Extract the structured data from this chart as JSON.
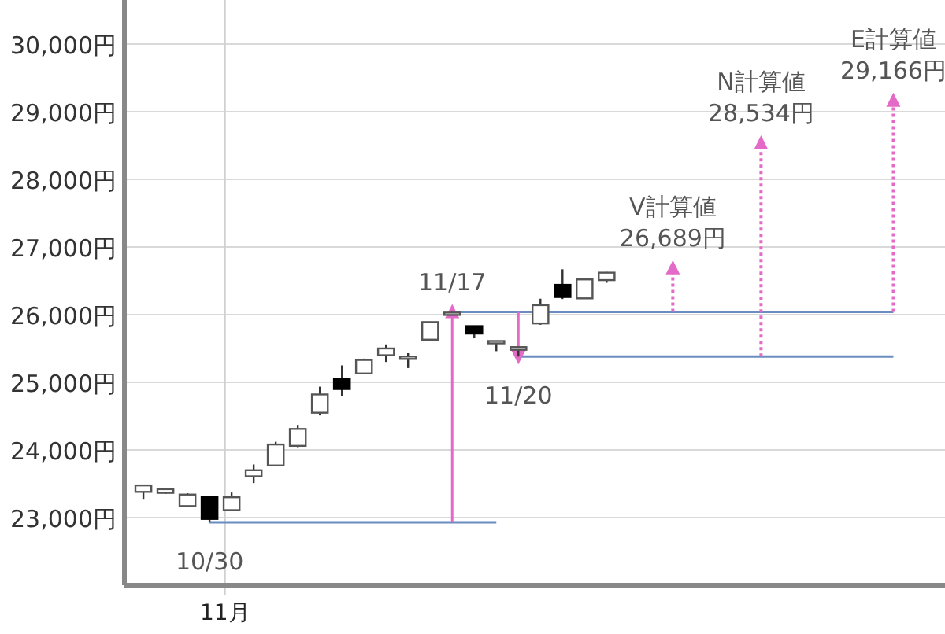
{
  "chart_data": {
    "type": "candlestick",
    "categories": [
      null,
      null,
      null,
      null,
      "11月",
      null,
      null,
      null,
      null,
      null,
      null,
      null,
      null,
      null,
      null,
      null,
      null,
      null,
      null,
      null,
      null,
      null,
      null,
      null,
      null,
      null,
      null,
      null,
      null,
      null,
      null,
      null,
      null,
      null,
      null,
      null
    ],
    "ohlc": [
      [
        23380,
        23475,
        23265,
        23475
      ],
      [
        23365,
        23430,
        23350,
        23420
      ],
      [
        23170,
        23360,
        23170,
        23340
      ],
      [
        23300,
        23300,
        22930,
        22980
      ],
      [
        23110,
        23370,
        23100,
        23300
      ],
      [
        23610,
        23785,
        23510,
        23700
      ],
      [
        23770,
        24120,
        23760,
        24080
      ],
      [
        24060,
        24370,
        24040,
        24310
      ],
      [
        24550,
        24935,
        24510,
        24820
      ],
      [
        25050,
        25250,
        24800,
        24900
      ],
      [
        25130,
        25350,
        25120,
        25330
      ],
      [
        25400,
        25560,
        25300,
        25500
      ],
      [
        25360,
        25430,
        25210,
        25380
      ],
      [
        25630,
        25890,
        25630,
        25890
      ],
      [
        26010,
        26040,
        25990,
        26030
      ],
      [
        25830,
        25830,
        25650,
        25720
      ],
      [
        25600,
        25610,
        25460,
        25610
      ],
      [
        25480,
        25530,
        25380,
        25520
      ],
      [
        25870,
        26235,
        25850,
        26140
      ],
      [
        26440,
        26670,
        26230,
        26260
      ],
      [
        26240,
        26520,
        26240,
        26520
      ],
      [
        26510,
        26630,
        26470,
        26620
      ],
      null,
      null,
      null,
      null,
      null,
      null,
      null,
      null,
      null,
      null,
      null,
      null,
      null,
      null
    ],
    "ylim": [
      22000,
      30650
    ],
    "yticks": [
      {
        "value": 23000,
        "label": "23,000円"
      },
      {
        "value": 24000,
        "label": "24,000円"
      },
      {
        "value": 25000,
        "label": "25,000円"
      },
      {
        "value": 26000,
        "label": "26,000円"
      },
      {
        "value": 27000,
        "label": "27,000円"
      },
      {
        "value": 28000,
        "label": "28,000円"
      },
      {
        "value": 29000,
        "label": "29,000円"
      },
      {
        "value": 30000,
        "label": "30,000円"
      }
    ],
    "grid": true,
    "series": [
      {
        "type": "line",
        "color": "#6a8cc0",
        "line_style": "solid",
        "values": [
          null,
          null,
          null,
          22930,
          22930,
          22930,
          22930,
          22930,
          22930,
          22930,
          22930,
          22930,
          22930,
          22930,
          22930,
          22930,
          22930,
          null,
          null,
          null,
          null,
          null,
          null,
          null,
          null,
          null,
          null,
          null,
          null,
          null,
          null,
          null,
          null,
          null,
          null,
          null
        ],
        "value_labels": [
          null,
          null,
          null,
          "10/30",
          null,
          null,
          null,
          null,
          null,
          null,
          null,
          null,
          null,
          null,
          null,
          null,
          null,
          null,
          null,
          null,
          null,
          null,
          null,
          null,
          null,
          null,
          null,
          null,
          null,
          null,
          null,
          null,
          null,
          null,
          null,
          null
        ]
      },
      {
        "type": "line",
        "color": "#6a8cc0",
        "line_style": "solid",
        "values": [
          null,
          null,
          null,
          null,
          null,
          null,
          null,
          null,
          null,
          null,
          null,
          null,
          null,
          null,
          26040,
          26040,
          26040,
          26040,
          26040,
          26040,
          26040,
          26040,
          26040,
          26040,
          26040,
          26040,
          26040,
          26040,
          26040,
          26040,
          26040,
          26040,
          26040,
          26040,
          26040,
          null
        ]
      },
      {
        "type": "line",
        "color": "#6a8cc0",
        "line_style": "solid",
        "values": [
          null,
          null,
          null,
          null,
          null,
          null,
          null,
          null,
          null,
          null,
          null,
          null,
          null,
          null,
          null,
          null,
          null,
          25380,
          25380,
          25380,
          25380,
          25380,
          25380,
          25380,
          25380,
          25380,
          25380,
          25380,
          25380,
          25380,
          25380,
          25380,
          25380,
          25380,
          25380,
          null
        ]
      },
      {
        "type": "scatter",
        "color": "#e46ac8",
        "line_style": "solid",
        "marker": "triangle",
        "values": [
          null,
          null,
          null,
          null,
          null,
          null,
          null,
          null,
          null,
          null,
          null,
          null,
          null,
          null,
          26040,
          null,
          null,
          25380,
          null,
          null,
          null,
          null,
          null,
          null,
          null,
          null,
          null,
          null,
          null,
          null,
          null,
          null,
          null,
          null,
          null,
          null
        ],
        "errors": [
          null,
          null,
          null,
          null,
          null,
          null,
          null,
          null,
          null,
          null,
          null,
          null,
          null,
          null,
          [
            22930,
            26040
          ],
          null,
          null,
          [
            25380,
            26040
          ],
          null,
          null,
          null,
          null,
          null,
          null,
          null,
          null,
          null,
          null,
          null,
          null,
          null,
          null,
          null,
          null,
          null,
          null
        ],
        "value_labels": [
          null,
          null,
          null,
          null,
          null,
          null,
          null,
          null,
          null,
          null,
          null,
          null,
          null,
          null,
          "11/17",
          null,
          null,
          "11/20",
          null,
          null,
          null,
          null,
          null,
          null,
          null,
          null,
          null,
          null,
          null,
          null,
          null,
          null,
          null,
          null,
          null,
          null
        ]
      },
      {
        "type": "scatter",
        "color": "#e46ac8",
        "line_style": "dotted",
        "marker": "triangle",
        "values": [
          null,
          null,
          null,
          null,
          null,
          null,
          null,
          null,
          null,
          null,
          null,
          null,
          null,
          null,
          null,
          null,
          null,
          null,
          null,
          null,
          null,
          null,
          null,
          null,
          26689,
          null,
          null,
          null,
          28534,
          null,
          null,
          null,
          null,
          null,
          29166,
          null
        ],
        "errors": [
          null,
          null,
          null,
          null,
          null,
          null,
          null,
          null,
          null,
          null,
          null,
          null,
          null,
          null,
          null,
          null,
          null,
          null,
          null,
          null,
          null,
          null,
          null,
          null,
          [
            26040,
            26689
          ],
          null,
          null,
          null,
          [
            25380,
            28534
          ],
          null,
          null,
          null,
          null,
          null,
          [
            26040,
            29166
          ],
          null
        ],
        "value_labels": [
          null,
          null,
          null,
          null,
          null,
          null,
          null,
          null,
          null,
          null,
          null,
          null,
          null,
          null,
          null,
          null,
          null,
          null,
          null,
          null,
          null,
          null,
          null,
          null,
          "V計算値\n26,689円",
          null,
          null,
          null,
          "N計算値\n28,534円",
          null,
          null,
          null,
          null,
          null,
          "E計算値\n29,166円",
          null
        ]
      }
    ]
  }
}
